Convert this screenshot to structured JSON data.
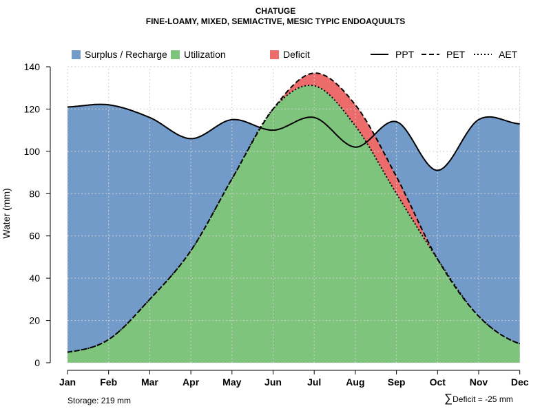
{
  "chart_data": {
    "type": "area",
    "title": "CHATUGE",
    "subtitle": "FINE-LOAMY, MIXED, SEMIACTIVE, MESIC TYPIC ENDOAQUULTS",
    "xlabel": "",
    "ylabel": "Water (mm)",
    "ylim": [
      0,
      140
    ],
    "yticks": [
      0,
      20,
      40,
      60,
      80,
      100,
      120,
      140
    ],
    "grid": true,
    "legend_position": "top",
    "categories": [
      "Jan",
      "Feb",
      "Mar",
      "Apr",
      "May",
      "Jun",
      "Jul",
      "Aug",
      "Sep",
      "Oct",
      "Nov",
      "Dec"
    ],
    "series": [
      {
        "name": "PPT",
        "line": "solid",
        "values": [
          121,
          122,
          116,
          106,
          115,
          110,
          116,
          102,
          114,
          91,
          115,
          113
        ]
      },
      {
        "name": "PET",
        "line": "dashed",
        "values": [
          5,
          11,
          30,
          53,
          87,
          120,
          137,
          122,
          88,
          49,
          22,
          9
        ]
      },
      {
        "name": "AET",
        "line": "dotted",
        "values": [
          5,
          11,
          30,
          53,
          87,
          120,
          131,
          112,
          80,
          49,
          22,
          9
        ]
      }
    ],
    "fills": [
      {
        "name": "Surplus / Recharge",
        "color": "#729bca"
      },
      {
        "name": "Utilization",
        "color": "#7fc47c"
      },
      {
        "name": "Deficit",
        "color": "#ec6b6b"
      }
    ],
    "annotations": {
      "storage": "Storage: 219 mm",
      "deficit_symbol": "∑",
      "deficit": "Deficit = -25 mm"
    }
  }
}
